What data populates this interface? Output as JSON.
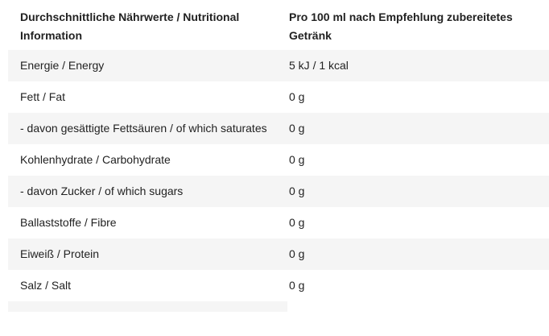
{
  "header": {
    "col1": "Durchschnittliche Nährwerte / Nutritional Information",
    "col2": "Pro 100 ml nach Empfehlung zubereitetes Getränk"
  },
  "rows": [
    {
      "label": "Energie / Energy",
      "value": "5 kJ / 1 kcal"
    },
    {
      "label": "Fett / Fat",
      "value": "0 g"
    },
    {
      "label": "- davon gesättigte Fettsäuren / of which saturates",
      "value": "0 g"
    },
    {
      "label": "Kohlenhydrate / Carbohydrate",
      "value": "0 g"
    },
    {
      "label": "- davon Zucker / of which sugars",
      "value": "0 g"
    },
    {
      "label": "Ballaststoffe / Fibre",
      "value": "0 g"
    },
    {
      "label": "Eiweiß / Protein",
      "value": "0 g"
    },
    {
      "label": "Salz / Salt",
      "value": "0 g"
    }
  ]
}
